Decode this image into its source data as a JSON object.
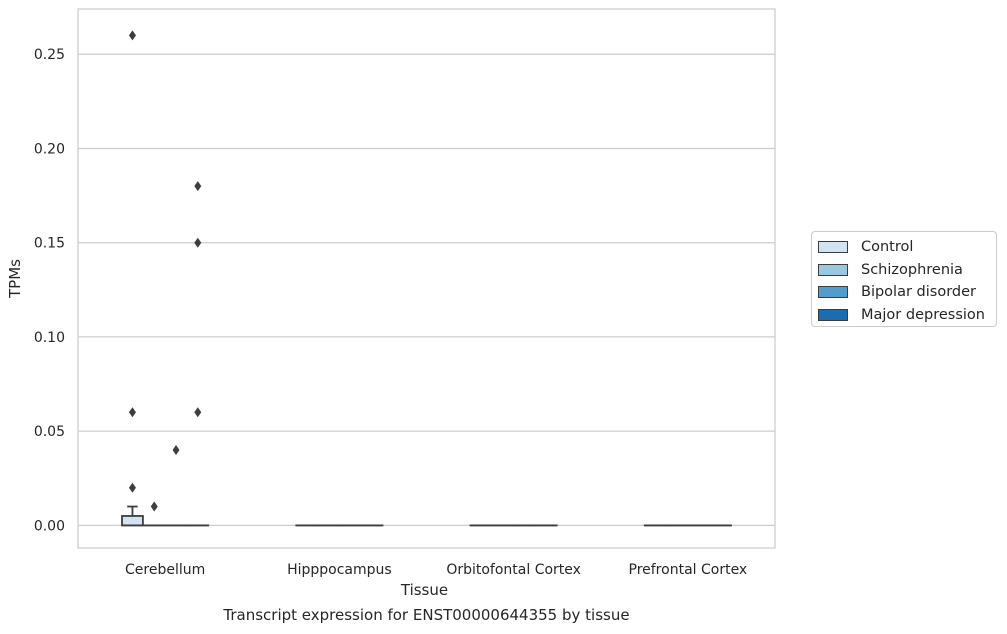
{
  "caption": "Transcript expression for ENST00000644355 by tissue",
  "chart_data": {
    "type": "box",
    "xlabel": "Tissue",
    "ylabel": "TPMs",
    "ylim": [
      -0.012,
      0.274
    ],
    "yticks": [
      "0.00",
      "0.05",
      "0.10",
      "0.15",
      "0.20",
      "0.25"
    ],
    "grid": true,
    "legend_position": "right",
    "categories": [
      "Cerebellum",
      "Hipppocampus",
      "Orbitofontal Cortex",
      "Prefrontal Cortex"
    ],
    "series": [
      {
        "name": "Control",
        "color": "#d1e2f2",
        "boxes": [
          {
            "q1": 0.0,
            "median": 0.0,
            "q3": 0.005,
            "whisker_low": 0.0,
            "whisker_high": 0.01,
            "outliers": [
              0.02,
              0.06,
              0.26
            ]
          },
          {
            "q1": 0.0,
            "median": 0.0,
            "q3": 0.0,
            "whisker_low": 0.0,
            "whisker_high": 0.0,
            "outliers": []
          },
          {
            "q1": 0.0,
            "median": 0.0,
            "q3": 0.0,
            "whisker_low": 0.0,
            "whisker_high": 0.0,
            "outliers": []
          },
          {
            "q1": 0.0,
            "median": 0.0,
            "q3": 0.0,
            "whisker_low": 0.0,
            "whisker_high": 0.0,
            "outliers": []
          }
        ]
      },
      {
        "name": "Schizophrenia",
        "color": "#9ac8e0",
        "boxes": [
          {
            "q1": 0.0,
            "median": 0.0,
            "q3": 0.0,
            "whisker_low": 0.0,
            "whisker_high": 0.0,
            "outliers": [
              0.01
            ]
          },
          {
            "q1": 0.0,
            "median": 0.0,
            "q3": 0.0,
            "whisker_low": 0.0,
            "whisker_high": 0.0,
            "outliers": []
          },
          {
            "q1": 0.0,
            "median": 0.0,
            "q3": 0.0,
            "whisker_low": 0.0,
            "whisker_high": 0.0,
            "outliers": []
          },
          {
            "q1": 0.0,
            "median": 0.0,
            "q3": 0.0,
            "whisker_low": 0.0,
            "whisker_high": 0.0,
            "outliers": []
          }
        ]
      },
      {
        "name": "Bipolar disorder",
        "color": "#529dcc",
        "boxes": [
          {
            "q1": 0.0,
            "median": 0.0,
            "q3": 0.0,
            "whisker_low": 0.0,
            "whisker_high": 0.0,
            "outliers": [
              0.04
            ]
          },
          {
            "q1": 0.0,
            "median": 0.0,
            "q3": 0.0,
            "whisker_low": 0.0,
            "whisker_high": 0.0,
            "outliers": []
          },
          {
            "q1": 0.0,
            "median": 0.0,
            "q3": 0.0,
            "whisker_low": 0.0,
            "whisker_high": 0.0,
            "outliers": []
          },
          {
            "q1": 0.0,
            "median": 0.0,
            "q3": 0.0,
            "whisker_low": 0.0,
            "whisker_high": 0.0,
            "outliers": []
          }
        ]
      },
      {
        "name": "Major depression",
        "color": "#1c6cb1",
        "boxes": [
          {
            "q1": 0.0,
            "median": 0.0,
            "q3": 0.0,
            "whisker_low": 0.0,
            "whisker_high": 0.0,
            "outliers": [
              0.06,
              0.15,
              0.18
            ]
          },
          {
            "q1": 0.0,
            "median": 0.0,
            "q3": 0.0,
            "whisker_low": 0.0,
            "whisker_high": 0.0,
            "outliers": []
          },
          {
            "q1": 0.0,
            "median": 0.0,
            "q3": 0.0,
            "whisker_low": 0.0,
            "whisker_high": 0.0,
            "outliers": []
          },
          {
            "q1": 0.0,
            "median": 0.0,
            "q3": 0.0,
            "whisker_low": 0.0,
            "whisker_high": 0.0,
            "outliers": []
          }
        ]
      }
    ]
  }
}
